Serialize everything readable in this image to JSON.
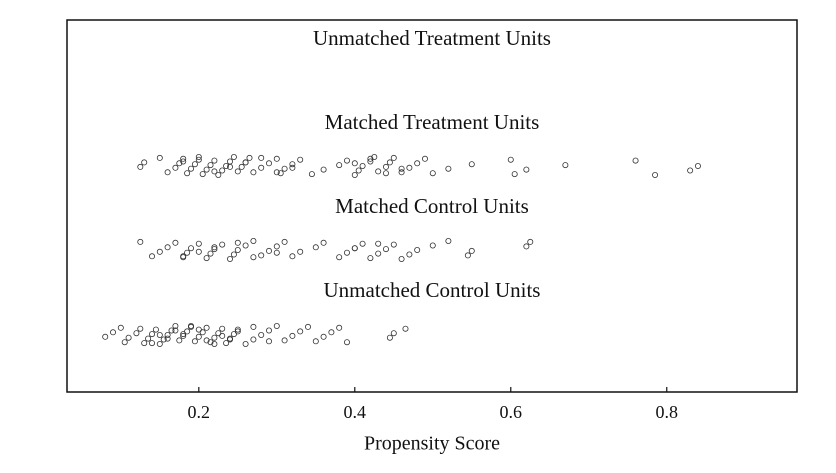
{
  "chart_data": {
    "type": "strip",
    "xlabel": "Propensity Score",
    "xlim": [
      0.031,
      0.967
    ],
    "xticks": [
      0.2,
      0.4,
      0.6,
      0.8
    ],
    "marker_color": "#333333",
    "series": [
      {
        "name": "Unmatched Treatment Units",
        "values": []
      },
      {
        "name": "Matched Treatment Units",
        "values": [
          0.125,
          0.13,
          0.15,
          0.16,
          0.17,
          0.175,
          0.18,
          0.185,
          0.19,
          0.195,
          0.2,
          0.205,
          0.21,
          0.215,
          0.22,
          0.225,
          0.23,
          0.235,
          0.24,
          0.245,
          0.25,
          0.255,
          0.26,
          0.265,
          0.27,
          0.28,
          0.29,
          0.3,
          0.305,
          0.31,
          0.32,
          0.33,
          0.345,
          0.36,
          0.38,
          0.39,
          0.4,
          0.405,
          0.41,
          0.42,
          0.425,
          0.43,
          0.44,
          0.445,
          0.45,
          0.46,
          0.47,
          0.48,
          0.49,
          0.5,
          0.52,
          0.55,
          0.6,
          0.605,
          0.62,
          0.67,
          0.76,
          0.785,
          0.83,
          0.84,
          0.18,
          0.2,
          0.22,
          0.24,
          0.26,
          0.28,
          0.3,
          0.32,
          0.4,
          0.42,
          0.44,
          0.46
        ]
      },
      {
        "name": "Matched Control Units",
        "values": [
          0.125,
          0.14,
          0.15,
          0.16,
          0.17,
          0.18,
          0.185,
          0.19,
          0.2,
          0.21,
          0.215,
          0.22,
          0.23,
          0.24,
          0.245,
          0.25,
          0.26,
          0.27,
          0.28,
          0.29,
          0.3,
          0.31,
          0.32,
          0.33,
          0.35,
          0.36,
          0.38,
          0.39,
          0.4,
          0.41,
          0.42,
          0.43,
          0.44,
          0.45,
          0.46,
          0.47,
          0.48,
          0.5,
          0.52,
          0.545,
          0.55,
          0.62,
          0.625,
          0.18,
          0.2,
          0.22,
          0.25,
          0.27,
          0.3,
          0.4,
          0.43
        ]
      },
      {
        "name": "Unmatched Control Units",
        "values": [
          0.08,
          0.09,
          0.1,
          0.105,
          0.11,
          0.12,
          0.125,
          0.13,
          0.135,
          0.14,
          0.145,
          0.15,
          0.155,
          0.16,
          0.165,
          0.17,
          0.175,
          0.18,
          0.185,
          0.19,
          0.195,
          0.2,
          0.205,
          0.21,
          0.215,
          0.22,
          0.225,
          0.23,
          0.235,
          0.24,
          0.245,
          0.25,
          0.26,
          0.27,
          0.28,
          0.29,
          0.3,
          0.31,
          0.32,
          0.33,
          0.34,
          0.35,
          0.36,
          0.37,
          0.38,
          0.39,
          0.445,
          0.45,
          0.465,
          0.14,
          0.16,
          0.18,
          0.2,
          0.22,
          0.24,
          0.15,
          0.17,
          0.19,
          0.21,
          0.23,
          0.25,
          0.27,
          0.29
        ]
      }
    ]
  }
}
